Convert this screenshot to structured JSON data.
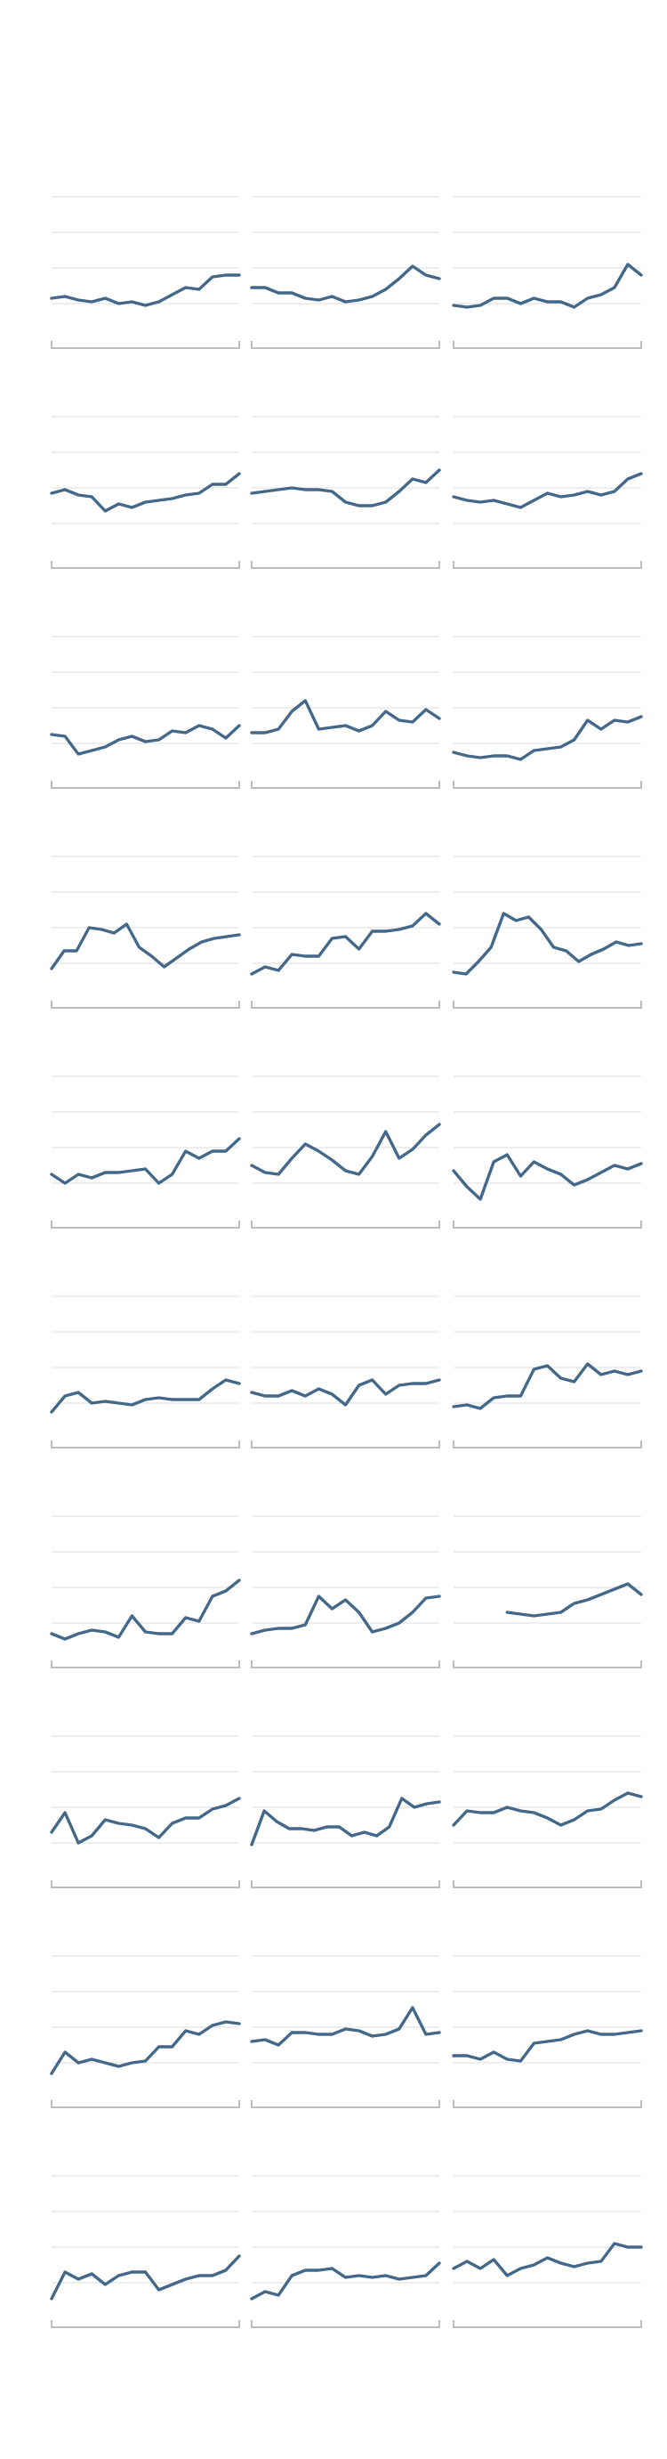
{
  "chart_data": {
    "type": "line",
    "layout": "small-multiples",
    "rows": 10,
    "cols": 3,
    "grid": true,
    "ylim": [
      0,
      10
    ],
    "gridlines_y": [
      3,
      5,
      7,
      9
    ],
    "colors": {
      "line": "#44688a",
      "grid": "#e3e3e3",
      "axis": "#bdbdbd",
      "background": "#ffffff"
    },
    "panels": [
      {
        "y": [
          3.3,
          3.4,
          3.2,
          3.1,
          3.3,
          3.0,
          3.1,
          2.9,
          3.1,
          3.5,
          3.9,
          3.8,
          4.5,
          4.6,
          4.6
        ]
      },
      {
        "y": [
          3.9,
          3.9,
          3.6,
          3.6,
          3.3,
          3.2,
          3.4,
          3.1,
          3.2,
          3.4,
          3.8,
          4.4,
          5.1,
          4.6,
          4.4
        ]
      },
      {
        "y": [
          2.9,
          2.8,
          2.9,
          3.3,
          3.3,
          3.0,
          3.3,
          3.1,
          3.1,
          2.8,
          3.3,
          3.5,
          3.9,
          5.2,
          4.6
        ]
      },
      {
        "y": [
          4.7,
          4.9,
          4.6,
          4.5,
          3.7,
          4.1,
          3.9,
          4.2,
          4.3,
          4.4,
          4.6,
          4.7,
          5.2,
          5.2,
          5.8
        ]
      },
      {
        "y": [
          4.7,
          4.8,
          4.9,
          5.0,
          4.9,
          4.9,
          4.8,
          4.2,
          4.0,
          4.0,
          4.2,
          4.8,
          5.5,
          5.3,
          6.0
        ]
      },
      {
        "y": [
          4.5,
          4.3,
          4.2,
          4.3,
          4.1,
          3.9,
          4.3,
          4.7,
          4.5,
          4.6,
          4.8,
          4.6,
          4.8,
          5.5,
          5.8
        ]
      },
      {
        "y": [
          3.5,
          3.4,
          2.4,
          2.6,
          2.8,
          3.2,
          3.4,
          3.1,
          3.2,
          3.7,
          3.6,
          4.0,
          3.8,
          3.3,
          4.0
        ]
      },
      {
        "y": [
          3.6,
          3.6,
          3.8,
          4.8,
          5.4,
          3.8,
          3.9,
          4.0,
          3.7,
          4.0,
          4.8,
          4.3,
          4.2,
          4.9,
          4.4
        ]
      },
      {
        "y": [
          2.5,
          2.3,
          2.2,
          2.3,
          2.3,
          2.1,
          2.6,
          2.7,
          2.8,
          3.2,
          4.3,
          3.8,
          4.3,
          4.2,
          4.5
        ]
      },
      {
        "y": [
          2.7,
          3.7,
          3.7,
          5.0,
          4.9,
          4.7,
          5.2,
          3.9,
          3.4,
          2.8,
          3.3,
          3.8,
          4.2,
          4.4,
          4.5,
          4.6
        ]
      },
      {
        "y": [
          2.4,
          2.8,
          2.6,
          3.5,
          3.4,
          3.4,
          4.4,
          4.5,
          3.8,
          4.8,
          4.8,
          4.9,
          5.1,
          5.8,
          5.2
        ]
      },
      {
        "y": [
          2.5,
          2.4,
          3.1,
          3.9,
          5.8,
          5.4,
          5.6,
          4.9,
          3.9,
          3.7,
          3.1,
          3.5,
          3.8,
          4.2,
          4.0,
          4.1
        ]
      },
      {
        "y": [
          3.5,
          3.0,
          3.5,
          3.3,
          3.6,
          3.6,
          3.7,
          3.8,
          3.0,
          3.5,
          4.8,
          4.4,
          4.8,
          4.8,
          5.5
        ]
      },
      {
        "y": [
          4.0,
          3.6,
          3.5,
          4.4,
          5.2,
          4.8,
          4.3,
          3.7,
          3.5,
          4.5,
          5.9,
          4.4,
          4.9,
          5.7,
          6.3
        ]
      },
      {
        "y": [
          3.7,
          2.8,
          2.1,
          4.2,
          4.6,
          3.4,
          4.2,
          3.8,
          3.5,
          2.9,
          3.2,
          3.6,
          4.0,
          3.8,
          4.1
        ]
      },
      {
        "y": [
          2.5,
          3.4,
          3.6,
          3.0,
          3.1,
          3.0,
          2.9,
          3.2,
          3.3,
          3.2,
          3.2,
          3.2,
          3.8,
          4.3,
          4.1
        ]
      },
      {
        "y": [
          3.6,
          3.4,
          3.4,
          3.7,
          3.4,
          3.8,
          3.5,
          2.9,
          4.0,
          4.3,
          3.5,
          4.0,
          4.1,
          4.1,
          4.3
        ]
      },
      {
        "y": [
          2.8,
          2.9,
          2.7,
          3.3,
          3.4,
          3.4,
          4.9,
          5.1,
          4.4,
          4.2,
          5.2,
          4.6,
          4.8,
          4.6,
          4.8
        ]
      },
      {
        "y": [
          2.4,
          2.1,
          2.4,
          2.6,
          2.5,
          2.2,
          3.4,
          2.5,
          2.4,
          2.4,
          3.3,
          3.1,
          4.5,
          4.8,
          5.4
        ]
      },
      {
        "y": [
          2.4,
          2.6,
          2.7,
          2.7,
          2.9,
          4.5,
          3.8,
          4.3,
          3.6,
          2.5,
          2.7,
          3.0,
          3.6,
          4.4,
          4.5
        ]
      },
      {
        "y": [
          null,
          null,
          null,
          null,
          3.6,
          3.5,
          3.4,
          3.5,
          3.6,
          4.1,
          4.3,
          4.6,
          4.9,
          5.2,
          4.6
        ]
      },
      {
        "y": [
          3.6,
          4.7,
          3.0,
          3.4,
          4.3,
          4.1,
          4.0,
          3.8,
          3.3,
          4.1,
          4.4,
          4.4,
          4.9,
          5.1,
          5.5
        ]
      },
      {
        "y": [
          2.9,
          4.8,
          4.2,
          3.8,
          3.8,
          3.7,
          3.9,
          3.9,
          3.4,
          3.6,
          3.4,
          3.9,
          5.5,
          5.0,
          5.2,
          5.3
        ]
      },
      {
        "y": [
          4.0,
          4.8,
          4.7,
          4.7,
          5.0,
          4.8,
          4.7,
          4.4,
          4.0,
          4.3,
          4.8,
          4.9,
          5.4,
          5.8,
          5.6
        ]
      },
      {
        "y": [
          2.4,
          3.6,
          3.0,
          3.2,
          3.0,
          2.8,
          3.0,
          3.1,
          3.9,
          3.9,
          4.8,
          4.6,
          5.1,
          5.3,
          5.2
        ]
      },
      {
        "y": [
          4.2,
          4.3,
          4.0,
          4.7,
          4.7,
          4.6,
          4.6,
          4.9,
          4.8,
          4.5,
          4.6,
          4.9,
          6.1,
          4.6,
          4.7
        ]
      },
      {
        "y": [
          3.4,
          3.4,
          3.2,
          3.6,
          3.2,
          3.1,
          4.1,
          4.2,
          4.3,
          4.6,
          4.8,
          4.6,
          4.6,
          4.7,
          4.8
        ]
      },
      {
        "y": [
          2.1,
          3.6,
          3.2,
          3.5,
          2.9,
          3.4,
          3.6,
          3.6,
          2.6,
          2.9,
          3.2,
          3.4,
          3.4,
          3.7,
          4.5
        ]
      },
      {
        "y": [
          2.1,
          2.5,
          2.3,
          3.4,
          3.7,
          3.7,
          3.8,
          3.3,
          3.4,
          3.3,
          3.4,
          3.2,
          3.3,
          3.4,
          4.1
        ]
      },
      {
        "y": [
          3.8,
          4.2,
          3.8,
          4.3,
          3.4,
          3.8,
          4.0,
          4.4,
          4.1,
          3.9,
          4.1,
          4.2,
          5.2,
          5.0,
          5.0
        ]
      }
    ]
  }
}
